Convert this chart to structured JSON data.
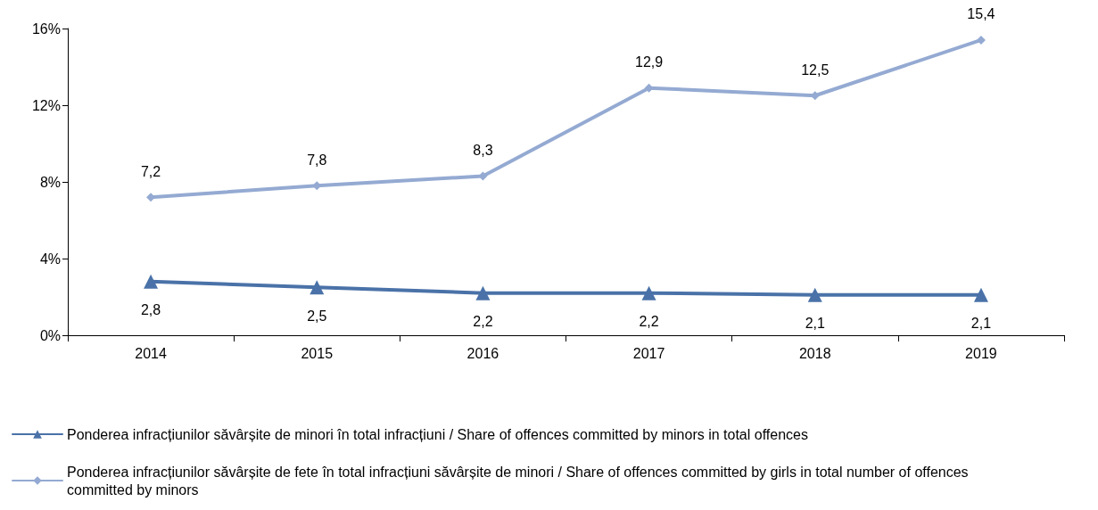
{
  "chart_data": {
    "type": "line",
    "categories": [
      "2014",
      "2015",
      "2016",
      "2017",
      "2018",
      "2019"
    ],
    "series": [
      {
        "name": "Ponderea infracțiunilor săvârșite de minori în total infracțiuni / Share of offences committed by minors in total offences",
        "color": "#4a72a8",
        "marker": "triangle",
        "values": [
          2.8,
          2.5,
          2.2,
          2.2,
          2.1,
          2.1
        ],
        "value_labels": [
          "2,8",
          "2,5",
          "2,2",
          "2,2",
          "2,1",
          "2,1"
        ]
      },
      {
        "name": "Ponderea infracțiunilor săvârșite de fete în total infracțiuni săvârșite de minori / Share of offences committed by girls in total number of offences committed by minors",
        "color": "#94aad2",
        "marker": "diamond",
        "values": [
          7.2,
          7.8,
          8.3,
          12.9,
          12.5,
          15.4
        ],
        "value_labels": [
          "7,2",
          "7,8",
          "8,3",
          "12,9",
          "12,5",
          "15,4"
        ]
      }
    ],
    "ylim": [
      0,
      16
    ],
    "yticks": [
      {
        "value": 0,
        "label": "0%"
      },
      {
        "value": 4,
        "label": "4%"
      },
      {
        "value": 8,
        "label": "8%"
      },
      {
        "value": 12,
        "label": "12%"
      },
      {
        "value": 16,
        "label": "16%"
      }
    ],
    "grid": false,
    "legend": "bottom",
    "line_style": "solid"
  }
}
